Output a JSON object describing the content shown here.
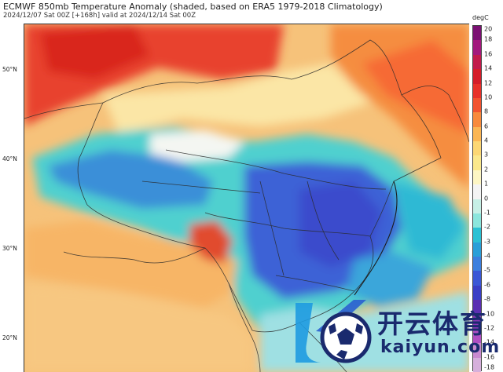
{
  "header": {
    "title": "ECMWF 850mb Temperature Anomaly (shaded, based on ERA5 1979-2018 Climatology)",
    "subtitle": "2024/12/07 Sat 00Z [+168h] valid at 2024/12/14 Sat 00Z"
  },
  "map": {
    "latitude_labels": [
      "50°N",
      "40°N",
      "30°N",
      "20°N"
    ],
    "shading_variable": "850mb temperature anomaly",
    "colors": {
      "warm_strong": "#e8312a",
      "warm": "#f88a3c",
      "neutral": "#f4f4f4",
      "cold": "#2bc1d4",
      "cold_strong": "#3b58d6",
      "borders": "#2a2a2a"
    }
  },
  "colorbar": {
    "unit": "degC",
    "tick_labels": [
      "20",
      "18",
      "16",
      "14",
      "12",
      "10",
      "8",
      "6",
      "4",
      "3",
      "2",
      "1",
      "0",
      "-1",
      "-2",
      "-3",
      "-4",
      "-5",
      "-6",
      "-8",
      "-10",
      "-12",
      "-14",
      "-16",
      "-18"
    ],
    "colors": [
      "#7b1173",
      "#a3197d",
      "#c21b4c",
      "#d51d2a",
      "#e8312a",
      "#f25330",
      "#f88a3c",
      "#fbb654",
      "#fcd774",
      "#fbe88c",
      "#fdf6c4",
      "#f4f4f4",
      "#c6f0e6",
      "#8ce6dd",
      "#2bc1d4",
      "#2a9fd8",
      "#3c7fde",
      "#3b58d6",
      "#3a3fc6",
      "#5b2fb2",
      "#8a36b8",
      "#b04fc3",
      "#c98ad0",
      "#d6b0dc"
    ]
  },
  "watermark": {
    "name": "开云体育",
    "url": "kaiyun.com",
    "logo_icon": "soccer-ball-icon"
  }
}
